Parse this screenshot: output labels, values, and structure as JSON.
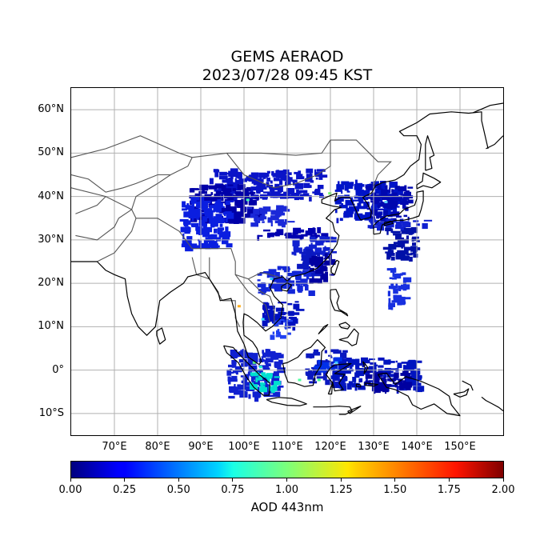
{
  "title": {
    "line1": "GEMS AERAOD",
    "line2": "2023/07/28 09:45 KST"
  },
  "map": {
    "extent": {
      "lon_min": 60,
      "lon_max": 160,
      "lat_min": -15,
      "lat_max": 65
    },
    "lat_ticks": [
      {
        "value": 60,
        "label": "60°N"
      },
      {
        "value": 50,
        "label": "50°N"
      },
      {
        "value": 40,
        "label": "40°N"
      },
      {
        "value": 30,
        "label": "30°N"
      },
      {
        "value": 20,
        "label": "20°N"
      },
      {
        "value": 10,
        "label": "10°N"
      },
      {
        "value": 0,
        "label": "0°"
      },
      {
        "value": -10,
        "label": "10°S"
      }
    ],
    "lon_ticks": [
      {
        "value": 70,
        "label": "70°E"
      },
      {
        "value": 80,
        "label": "80°E"
      },
      {
        "value": 90,
        "label": "90°E"
      },
      {
        "value": 100,
        "label": "100°E"
      },
      {
        "value": 110,
        "label": "110°E"
      },
      {
        "value": 120,
        "label": "120°E"
      },
      {
        "value": 130,
        "label": "130°E"
      },
      {
        "value": 140,
        "label": "140°E"
      },
      {
        "value": 150,
        "label": "150°E"
      }
    ],
    "grid": true
  },
  "colorbar": {
    "label": "AOD 443nm",
    "min": 0.0,
    "max": 2.0,
    "colormap": "jet",
    "ticks": [
      {
        "value": 0.0,
        "label": "0.00"
      },
      {
        "value": 0.25,
        "label": "0.25"
      },
      {
        "value": 0.5,
        "label": "0.50"
      },
      {
        "value": 0.75,
        "label": "0.75"
      },
      {
        "value": 1.0,
        "label": "1.00"
      },
      {
        "value": 1.25,
        "label": "1.25"
      },
      {
        "value": 1.5,
        "label": "1.50"
      },
      {
        "value": 1.75,
        "label": "1.75"
      },
      {
        "value": 2.0,
        "label": "2.00"
      }
    ]
  },
  "colors": {
    "aod_low": "#00008f",
    "aod_mid": "#1c3cff",
    "coastline": "#000000",
    "borders": "#555555",
    "grid": "#b0b0b0"
  }
}
